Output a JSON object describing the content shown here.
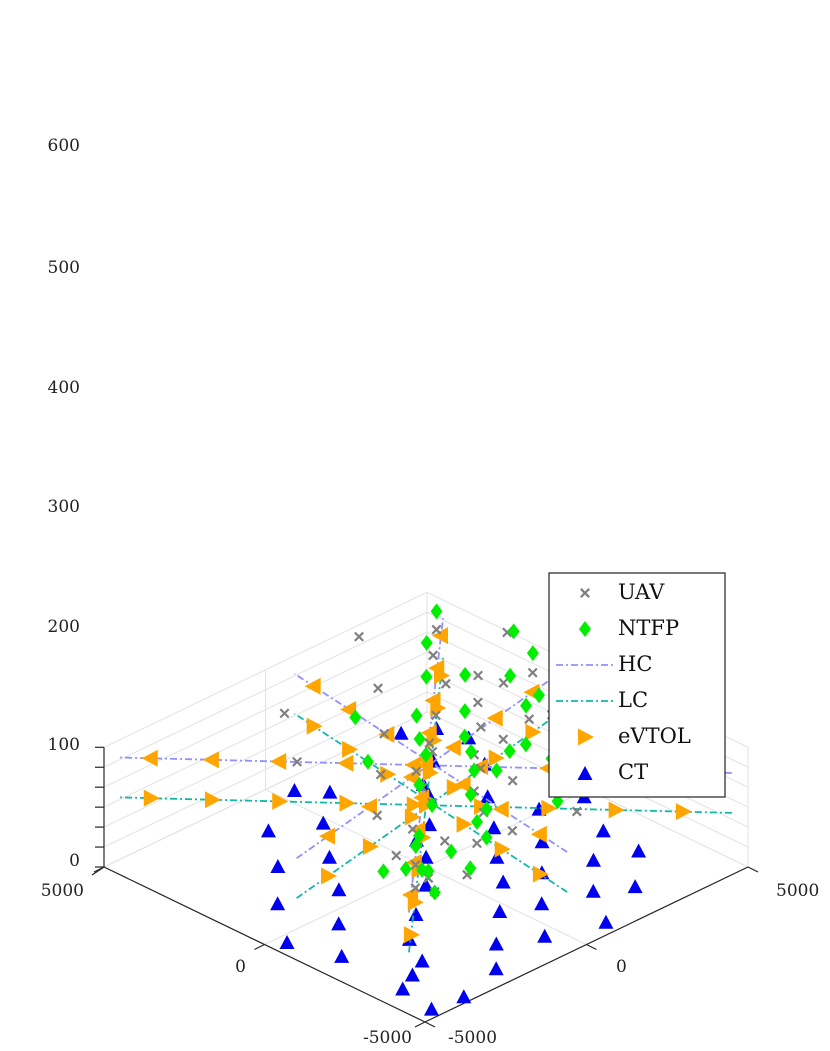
{
  "chart_data": {
    "type": "scatter3d",
    "title": "",
    "xlabel": "",
    "ylabel": "",
    "zlabel": "",
    "xlim": [
      -5000,
      5000
    ],
    "ylim": [
      -5000,
      5000
    ],
    "zlim": [
      0,
      600
    ],
    "z_ticks": [
      "0",
      "100",
      "200",
      "300",
      "400",
      "500",
      "600"
    ],
    "x_ticks": [
      "-5000",
      "0",
      "5000"
    ],
    "y_ticks": [
      "-5000",
      "0",
      "5000"
    ],
    "grid": true,
    "legend_position": "lower-right",
    "colors": {
      "uav": "#808080",
      "ntfp": "#00ee00",
      "hc": "#9090ff",
      "lc": "#10b8a8",
      "evtol": "#ffa500",
      "ct": "#0000ee"
    },
    "legend": [
      {
        "label": "UAV",
        "key": "uav",
        "marker": "x"
      },
      {
        "label": "NTFP",
        "key": "ntfp",
        "marker": "diamond"
      },
      {
        "label": "HC",
        "key": "hc",
        "marker": "dashdot"
      },
      {
        "label": "LC",
        "key": "lc",
        "marker": "dashdot"
      },
      {
        "label": "eVTOL",
        "key": "evtol",
        "marker": "triangle-right"
      },
      {
        "label": "CT",
        "key": "ct",
        "marker": "triangle-up"
      }
    ],
    "series": [
      {
        "name": "UAV",
        "key": "uav",
        "points": [
          [
            -4800,
            -4500,
            598
          ],
          [
            -4400,
            -4700,
            602
          ],
          [
            -4000,
            -3900,
            558
          ],
          [
            -3500,
            -3800,
            578
          ],
          [
            -3000,
            -2400,
            550
          ],
          [
            -2200,
            -2600,
            563
          ],
          [
            -1600,
            -1400,
            555
          ],
          [
            -900,
            -1000,
            545
          ],
          [
            -400,
            -700,
            565
          ],
          [
            100,
            300,
            547
          ],
          [
            600,
            700,
            520
          ],
          [
            1300,
            1600,
            535
          ],
          [
            2200,
            2800,
            530
          ],
          [
            3200,
            3400,
            548
          ],
          [
            4000,
            4300,
            545
          ],
          [
            -4600,
            -3300,
            575
          ],
          [
            -3800,
            -2200,
            585
          ],
          [
            -3000,
            -1200,
            600
          ],
          [
            -2100,
            -600,
            590
          ],
          [
            -1400,
            300,
            580
          ],
          [
            -700,
            800,
            555
          ],
          [
            0,
            1700,
            570
          ],
          [
            1000,
            2600,
            545
          ],
          [
            2000,
            3600,
            525
          ],
          [
            -2600,
            1600,
            490
          ],
          [
            -1600,
            2600,
            520
          ],
          [
            -600,
            3300,
            553
          ],
          [
            -4300,
            -1600,
            640
          ],
          [
            -2800,
            -100,
            658
          ],
          [
            -1200,
            1200,
            640
          ],
          [
            300,
            2700,
            690
          ],
          [
            1800,
            4300,
            702
          ],
          [
            -3300,
            -4200,
            640
          ],
          [
            -1800,
            -3300,
            655
          ],
          [
            -500,
            -1900,
            650
          ],
          [
            700,
            -600,
            660
          ],
          [
            2300,
            800,
            655
          ],
          [
            4200,
            2100,
            665
          ],
          [
            -1000,
            2200,
            648
          ],
          [
            500,
            3800,
            640
          ],
          [
            -5000,
            -300,
            690
          ],
          [
            -2600,
            2800,
            700
          ],
          [
            -200,
            4400,
            695
          ],
          [
            1500,
            -2500,
            605
          ],
          [
            3200,
            -1200,
            615
          ],
          [
            -3700,
            1100,
            660
          ]
        ]
      },
      {
        "name": "NTFP",
        "key": "ntfp",
        "points": [
          [
            -4900,
            -4600,
            610
          ],
          [
            -4200,
            -4100,
            625
          ],
          [
            -3700,
            -3800,
            568
          ],
          [
            -3000,
            -3300,
            595
          ],
          [
            -2500,
            -2700,
            560
          ],
          [
            -1900,
            -1700,
            590
          ],
          [
            -1100,
            -1300,
            598
          ],
          [
            -400,
            -400,
            625
          ],
          [
            400,
            200,
            595
          ],
          [
            1300,
            1000,
            580
          ],
          [
            2200,
            2200,
            612
          ],
          [
            3400,
            3400,
            595
          ],
          [
            4300,
            4600,
            590
          ],
          [
            -4600,
            -3200,
            600
          ],
          [
            -4000,
            -2100,
            622
          ],
          [
            -3200,
            -1300,
            640
          ],
          [
            -2200,
            -800,
            596
          ],
          [
            -1500,
            0,
            600
          ],
          [
            -700,
            700,
            578
          ],
          [
            0,
            1200,
            560
          ],
          [
            900,
            2100,
            548
          ],
          [
            1800,
            3000,
            590
          ],
          [
            -3400,
            -1800,
            630
          ],
          [
            -2300,
            -100,
            670
          ],
          [
            -1500,
            1100,
            612
          ],
          [
            -400,
            2700,
            630
          ],
          [
            700,
            3300,
            648
          ],
          [
            2100,
            4800,
            645
          ],
          [
            -2900,
            1800,
            555
          ],
          [
            -1900,
            2600,
            600
          ],
          [
            -800,
            3700,
            700
          ],
          [
            -3800,
            -4400,
            628
          ],
          [
            -3000,
            -4300,
            545
          ],
          [
            -1200,
            1900,
            560
          ],
          [
            -200,
            3300,
            620
          ],
          [
            1400,
            4700,
            598
          ],
          [
            -2300,
            3100,
            680
          ],
          [
            -900,
            4300,
            740
          ],
          [
            -4400,
            -300,
            695
          ],
          [
            -1800,
            2100,
            520
          ],
          [
            -3600,
            -2800,
            575
          ],
          [
            500,
            -1300,
            590
          ],
          [
            2000,
            -200,
            610
          ]
        ]
      },
      {
        "name": "HC",
        "key": "hc",
        "lines": [
          [
            [
              -4500,
              -5000,
              510
            ],
            [
              4500,
              5000,
              510
            ]
          ],
          [
            [
              -5000,
              4500,
              510
            ],
            [
              5000,
              -4500,
              510
            ]
          ],
          [
            [
              -5000,
              -600,
              510
            ],
            [
              5000,
              900,
              510
            ]
          ],
          [
            [
              -1000,
              -5000,
              510
            ],
            [
              900,
              5000,
              510
            ]
          ]
        ]
      },
      {
        "name": "LC",
        "key": "lc",
        "lines": [
          [
            [
              -4500,
              -5000,
              310
            ],
            [
              4500,
              5000,
              310
            ]
          ],
          [
            [
              -5000,
              4500,
              310
            ],
            [
              5000,
              -4500,
              310
            ]
          ],
          [
            [
              -5000,
              -600,
              310
            ],
            [
              5000,
              900,
              310
            ]
          ],
          [
            [
              -1000,
              -5000,
              310
            ],
            [
              900,
              5000,
              310
            ]
          ]
        ]
      },
      {
        "name": "eVTOL",
        "key": "evtol",
        "on_lines": [
          {
            "layer": 510,
            "line": 0,
            "t": [
              0.06,
              0.17,
              0.28,
              0.39,
              0.5,
              0.61,
              0.72,
              0.83,
              0.94
            ],
            "dir": "left"
          },
          {
            "layer": 510,
            "line": 1,
            "t": [
              0.08,
              0.19,
              0.3,
              0.41,
              0.52,
              0.63,
              0.74,
              0.85,
              0.95
            ],
            "dir": "left"
          },
          {
            "layer": 510,
            "line": 2,
            "t": [
              0.1,
              0.24,
              0.38,
              0.52,
              0.66,
              0.8,
              0.93
            ],
            "dir": "left"
          },
          {
            "layer": 510,
            "line": 3,
            "t": [
              0.12,
              0.28,
              0.44,
              0.6,
              0.76,
              0.9
            ],
            "dir": "left"
          },
          {
            "layer": 310,
            "line": 0,
            "t": [
              0.06,
              0.17,
              0.28,
              0.39,
              0.5,
              0.61,
              0.72,
              0.83,
              0.94
            ],
            "dir": "right"
          },
          {
            "layer": 310,
            "line": 1,
            "t": [
              0.08,
              0.19,
              0.3,
              0.41,
              0.52,
              0.63,
              0.74,
              0.85,
              0.95
            ],
            "dir": "right"
          },
          {
            "layer": 310,
            "line": 2,
            "t": [
              0.1,
              0.24,
              0.38,
              0.52,
              0.66,
              0.8,
              0.93
            ],
            "dir": "right"
          },
          {
            "layer": 310,
            "line": 3,
            "t": [
              0.12,
              0.28,
              0.44,
              0.6,
              0.76,
              0.9
            ],
            "dir": "right"
          }
        ]
      },
      {
        "name": "CT",
        "key": "ct",
        "points": [
          [
            -4700,
            -4500,
            0
          ],
          [
            -3600,
            -4300,
            0
          ],
          [
            -3000,
            -3100,
            0
          ],
          [
            -2100,
            -2600,
            0
          ],
          [
            -1400,
            -1700,
            0
          ],
          [
            -600,
            -600,
            0
          ],
          [
            300,
            300,
            0
          ],
          [
            1300,
            1400,
            0
          ],
          [
            2200,
            2300,
            0
          ],
          [
            3300,
            3500,
            0
          ],
          [
            4300,
            4600,
            0
          ],
          [
            -4400,
            -2200,
            0
          ],
          [
            -3600,
            -1400,
            0
          ],
          [
            -2600,
            -300,
            0
          ],
          [
            -1700,
            700,
            0
          ],
          [
            -800,
            1400,
            0
          ],
          [
            200,
            2300,
            0
          ],
          [
            1300,
            3200,
            0
          ],
          [
            2400,
            4200,
            0
          ],
          [
            -4100,
            -400,
            0
          ],
          [
            -3000,
            600,
            0
          ],
          [
            -2000,
            1600,
            0
          ],
          [
            -1000,
            2600,
            0
          ],
          [
            100,
            3600,
            0
          ],
          [
            -3400,
            1800,
            0
          ],
          [
            -2400,
            2800,
            0
          ],
          [
            -1600,
            3900,
            0
          ],
          [
            -4600,
            1000,
            0
          ],
          [
            -3900,
            2600,
            0
          ],
          [
            -2800,
            3800,
            0
          ],
          [
            -1600,
            -4200,
            0
          ],
          [
            -500,
            -3200,
            0
          ],
          [
            600,
            -2100,
            0
          ],
          [
            1800,
            -1200,
            0
          ],
          [
            3000,
            -200,
            0
          ],
          [
            3900,
            900,
            0
          ],
          [
            -300,
            -4600,
            0
          ],
          [
            1100,
            -3500,
            0
          ],
          [
            2300,
            -2300,
            0
          ],
          [
            3600,
            -1300,
            0
          ],
          [
            4500,
            400,
            0
          ],
          [
            2700,
            2600,
            0
          ],
          [
            1000,
            700,
            0
          ],
          [
            -3300,
            -3700,
            0
          ],
          [
            -4800,
            -3600,
            0
          ],
          [
            4700,
            3900,
            0
          ],
          [
            -200,
            4700,
            0
          ],
          [
            3500,
            4800,
            0
          ]
        ]
      }
    ]
  }
}
